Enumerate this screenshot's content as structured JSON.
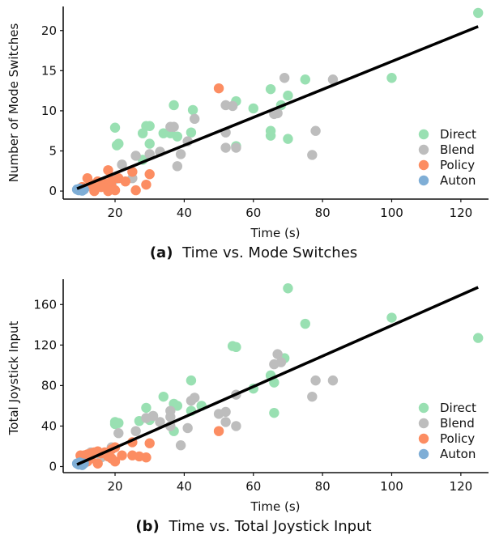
{
  "chart_data": [
    {
      "type": "scatter",
      "caption_tag": "(a)",
      "caption_text": "Time vs. Mode Switches",
      "xlabel": "Time (s)",
      "ylabel": "Number of Mode Switches",
      "xlim": [
        5,
        128
      ],
      "ylim": [
        -1,
        23
      ],
      "xticks": [
        20,
        40,
        60,
        80,
        100,
        120
      ],
      "yticks": [
        0,
        5,
        10,
        15,
        20
      ],
      "fit_line": {
        "x": [
          9,
          125
        ],
        "y": [
          0.3,
          20.5
        ]
      },
      "legend_position": "lower-right",
      "series": [
        {
          "name": "Direct",
          "color": "#99e0b2",
          "points": [
            [
              125,
              22.2
            ],
            [
              100,
              14.1
            ],
            [
              75,
              13.9
            ],
            [
              70,
              11.9
            ],
            [
              65,
              12.7
            ],
            [
              68,
              10.7
            ],
            [
              60,
              10.3
            ],
            [
              55,
              11.2
            ],
            [
              42.5,
              10.1
            ],
            [
              37,
              10.7
            ],
            [
              30,
              8.1
            ],
            [
              29,
              8.1
            ],
            [
              28,
              7.2
            ],
            [
              20,
              7.9
            ],
            [
              36,
              7.2
            ],
            [
              38,
              6.8
            ],
            [
              42,
              7.3
            ],
            [
              34,
              7.2
            ],
            [
              21,
              5.9
            ],
            [
              20.5,
              5.7
            ],
            [
              30,
              5.9
            ],
            [
              28,
              3.9
            ],
            [
              55,
              5.6
            ],
            [
              65,
              6.9
            ],
            [
              65,
              7.5
            ],
            [
              70,
              6.5
            ]
          ]
        },
        {
          "name": "Blend",
          "color": "#bdbdbd",
          "points": [
            [
              69,
              14.1
            ],
            [
              83,
              13.9
            ],
            [
              52,
              10.7
            ],
            [
              54,
              10.6
            ],
            [
              67,
              9.7
            ],
            [
              36,
              8.0
            ],
            [
              37,
              8.0
            ],
            [
              43,
              9.0
            ],
            [
              52,
              7.3
            ],
            [
              78,
              7.5
            ],
            [
              41,
              6.2
            ],
            [
              33,
              4.9
            ],
            [
              39,
              4.6
            ],
            [
              26,
              4.4
            ],
            [
              30,
              4.6
            ],
            [
              55,
              5.4
            ],
            [
              52,
              5.4
            ],
            [
              77,
              4.5
            ],
            [
              38,
              3.1
            ],
            [
              22,
              3.3
            ],
            [
              25,
              1.6
            ],
            [
              13,
              0.6
            ],
            [
              10,
              0.2
            ],
            [
              15,
              1.2
            ],
            [
              17,
              0.8
            ],
            [
              20,
              1.5
            ],
            [
              66,
              9.6
            ]
          ]
        },
        {
          "name": "Policy",
          "color": "#fc8d62",
          "points": [
            [
              50,
              12.8
            ],
            [
              25,
              2.4
            ],
            [
              30,
              2.1
            ],
            [
              18,
              2.6
            ],
            [
              21,
              1.6
            ],
            [
              12,
              1.6
            ],
            [
              15,
              1.2
            ],
            [
              17,
              1.0
            ],
            [
              19,
              0.6
            ],
            [
              14,
              0.4
            ],
            [
              20,
              0.1
            ],
            [
              11,
              0.2
            ],
            [
              16,
              0.5
            ],
            [
              23,
              1.2
            ],
            [
              26,
              0.1
            ],
            [
              29,
              0.8
            ],
            [
              19,
              1.3
            ],
            [
              13,
              0.9
            ],
            [
              10.5,
              0.5
            ],
            [
              14,
              0.0
            ],
            [
              18,
              0.0
            ]
          ]
        },
        {
          "name": "Auton",
          "color": "#7faed6",
          "points": [
            [
              9,
              0.2
            ],
            [
              9.5,
              0.1
            ],
            [
              10,
              0.15
            ],
            [
              10.5,
              0.05
            ],
            [
              11,
              0.2
            ],
            [
              9.8,
              0.3
            ]
          ]
        }
      ]
    },
    {
      "type": "scatter",
      "caption_tag": "(b)",
      "caption_text": "Time vs. Total Joystick Input",
      "xlabel": "Time (s)",
      "ylabel": "Total Joystick Input",
      "xlim": [
        5,
        128
      ],
      "ylim": [
        -6,
        185
      ],
      "xticks": [
        20,
        40,
        60,
        80,
        100,
        120
      ],
      "yticks": [
        0,
        40,
        80,
        120,
        160
      ],
      "fit_line": {
        "x": [
          9,
          125
        ],
        "y": [
          2,
          177
        ]
      },
      "legend_position": "lower-right",
      "series": [
        {
          "name": "Direct",
          "color": "#99e0b2",
          "points": [
            [
              70,
              176
            ],
            [
              75,
              141
            ],
            [
              100,
              147
            ],
            [
              125,
              127
            ],
            [
              54,
              119
            ],
            [
              55,
              118
            ],
            [
              69,
              107
            ],
            [
              65,
              90
            ],
            [
              66,
              83
            ],
            [
              60,
              77
            ],
            [
              42,
              85
            ],
            [
              42,
              55
            ],
            [
              34,
              69
            ],
            [
              37,
              62
            ],
            [
              38,
              60
            ],
            [
              29,
              58
            ],
            [
              31,
              50
            ],
            [
              27,
              45
            ],
            [
              20,
              44
            ],
            [
              21,
              43
            ],
            [
              20,
              42
            ],
            [
              37,
              35
            ],
            [
              66,
              53
            ],
            [
              45,
              60
            ],
            [
              30,
              46
            ]
          ]
        },
        {
          "name": "Blend",
          "color": "#bdbdbd",
          "points": [
            [
              67,
              111
            ],
            [
              68,
              103
            ],
            [
              66,
              101
            ],
            [
              78,
              85
            ],
            [
              83,
              85
            ],
            [
              77,
              69
            ],
            [
              55,
              71
            ],
            [
              43,
              68
            ],
            [
              42,
              65
            ],
            [
              36,
              55
            ],
            [
              36,
              49
            ],
            [
              33,
              44
            ],
            [
              29,
              48
            ],
            [
              31,
              50
            ],
            [
              52,
              54
            ],
            [
              50,
              52
            ],
            [
              52,
              44
            ],
            [
              55,
              40
            ],
            [
              41,
              38
            ],
            [
              39,
              21
            ],
            [
              36,
              40
            ],
            [
              26,
              35
            ],
            [
              21,
              33
            ],
            [
              13,
              14
            ],
            [
              16,
              9
            ],
            [
              19,
              19
            ],
            [
              11,
              6
            ]
          ]
        },
        {
          "name": "Policy",
          "color": "#fc8d62",
          "points": [
            [
              50,
              35
            ],
            [
              30,
              23
            ],
            [
              25,
              24
            ],
            [
              20,
              19
            ],
            [
              19,
              17
            ],
            [
              17,
              14
            ],
            [
              15,
              15
            ],
            [
              14,
              14
            ],
            [
              13,
              13
            ],
            [
              12,
              12
            ],
            [
              11,
              11
            ],
            [
              10,
              11
            ],
            [
              16,
              13
            ],
            [
              18,
              10
            ],
            [
              19,
              8
            ],
            [
              20,
              5
            ],
            [
              12,
              5
            ],
            [
              15,
              3
            ],
            [
              25,
              11
            ],
            [
              27,
              10
            ],
            [
              29,
              9
            ],
            [
              22,
              11
            ],
            [
              13,
              8
            ],
            [
              10.5,
              6
            ]
          ]
        },
        {
          "name": "Auton",
          "color": "#7faed6",
          "points": [
            [
              9,
              3
            ],
            [
              9.5,
              2
            ],
            [
              10,
              2.5
            ],
            [
              10.5,
              1.5
            ],
            [
              11,
              3
            ],
            [
              9.8,
              4
            ]
          ]
        }
      ]
    }
  ]
}
